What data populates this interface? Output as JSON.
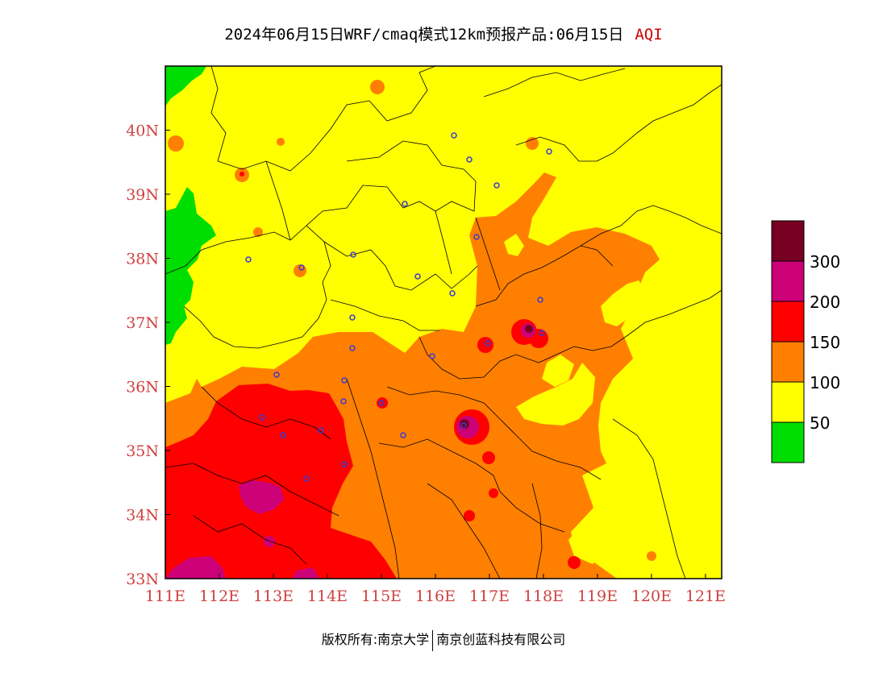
{
  "title": {
    "main": "2024年06月15日WRF/cmaq模式12km预报产品:06月15日",
    "variable": "AQI"
  },
  "map": {
    "lon_range": [
      111,
      121.3
    ],
    "lat_range": [
      33,
      41
    ],
    "x_ticks": [
      "111E",
      "112E",
      "113E",
      "114E",
      "115E",
      "116E",
      "117E",
      "118E",
      "119E",
      "120E",
      "121E"
    ],
    "y_ticks": [
      "33N",
      "34N",
      "35N",
      "36N",
      "37N",
      "38N",
      "39N",
      "40N"
    ],
    "colors": {
      "level_0_50": "#00dd00",
      "level_50_100": "#ffff00",
      "level_100_150": "#ff7f00",
      "level_150_200": "#ff0000",
      "level_200_300": "#cc0077",
      "level_300_plus": "#770022",
      "station_marker": "#3a3ad0",
      "axis_text": "#d04040"
    }
  },
  "legend": {
    "labels": [
      "300",
      "200",
      "150",
      "100",
      "50"
    ],
    "colors": [
      "#770022",
      "#cc0077",
      "#ff0000",
      "#ff7f00",
      "#ffff00",
      "#00dd00"
    ]
  },
  "footer": {
    "copyright": "版权所有:南京大学",
    "company": "南京创蓝科技有限公司"
  }
}
